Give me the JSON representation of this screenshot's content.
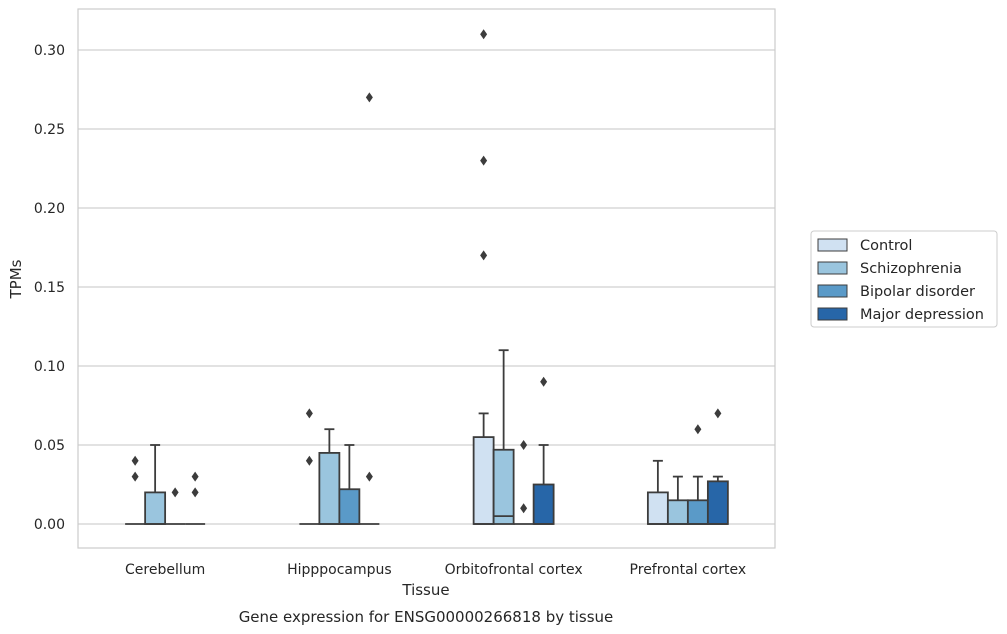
{
  "chart_data": {
    "type": "box",
    "title": "",
    "caption": "Gene expression for ENSG00000266818 by tissue",
    "xlabel": "Tissue",
    "ylabel": "TPMs",
    "ylim": [
      -0.015,
      0.326
    ],
    "yticks": [
      "0.00",
      "0.05",
      "0.10",
      "0.15",
      "0.20",
      "0.25",
      "0.30"
    ],
    "grid": "horizontal",
    "legend_position": "right",
    "categories": [
      "Cerebellum",
      "Hipppocampus",
      "Orbitofrontal cortex",
      "Prefrontal cortex"
    ],
    "series": [
      {
        "name": "Control",
        "color": "#d0e1f2",
        "boxes": [
          {
            "q1": 0.0,
            "median": 0.0,
            "q3": 0.0,
            "whisker_low": 0.0,
            "whisker_high": 0.0,
            "outliers": [
              0.03,
              0.04
            ]
          },
          {
            "q1": 0.0,
            "median": 0.0,
            "q3": 0.0,
            "whisker_low": 0.0,
            "whisker_high": 0.0,
            "outliers": [
              0.04,
              0.07
            ]
          },
          {
            "q1": 0.0,
            "median": 0.0,
            "q3": 0.055,
            "whisker_low": 0.0,
            "whisker_high": 0.07,
            "outliers": [
              0.17,
              0.23,
              0.31
            ]
          },
          {
            "q1": 0.0,
            "median": 0.0,
            "q3": 0.02,
            "whisker_low": 0.0,
            "whisker_high": 0.04,
            "outliers": []
          }
        ]
      },
      {
        "name": "Schizophrenia",
        "color": "#9ac5de",
        "boxes": [
          {
            "q1": 0.0,
            "median": 0.0,
            "q3": 0.02,
            "whisker_low": 0.0,
            "whisker_high": 0.05,
            "outliers": []
          },
          {
            "q1": 0.0,
            "median": 0.0,
            "q3": 0.045,
            "whisker_low": 0.0,
            "whisker_high": 0.06,
            "outliers": []
          },
          {
            "q1": 0.0,
            "median": 0.005,
            "q3": 0.047,
            "whisker_low": 0.0,
            "whisker_high": 0.11,
            "outliers": []
          },
          {
            "q1": 0.0,
            "median": 0.0,
            "q3": 0.015,
            "whisker_low": 0.0,
            "whisker_high": 0.03,
            "outliers": []
          }
        ]
      },
      {
        "name": "Bipolar disorder",
        "color": "#5a9ac8",
        "boxes": [
          {
            "q1": 0.0,
            "median": 0.0,
            "q3": 0.0,
            "whisker_low": 0.0,
            "whisker_high": 0.0,
            "outliers": [
              0.02
            ]
          },
          {
            "q1": 0.0,
            "median": 0.0,
            "q3": 0.022,
            "whisker_low": 0.0,
            "whisker_high": 0.05,
            "outliers": []
          },
          {
            "q1": 0.0,
            "median": 0.0,
            "q3": 0.0,
            "whisker_low": 0.0,
            "whisker_high": 0.0,
            "outliers": [
              0.01,
              0.05
            ]
          },
          {
            "q1": 0.0,
            "median": 0.0,
            "q3": 0.015,
            "whisker_low": 0.0,
            "whisker_high": 0.03,
            "outliers": [
              0.06
            ]
          }
        ]
      },
      {
        "name": "Major depression",
        "color": "#2766a8",
        "boxes": [
          {
            "q1": 0.0,
            "median": 0.0,
            "q3": 0.0,
            "whisker_low": 0.0,
            "whisker_high": 0.0,
            "outliers": [
              0.02,
              0.03
            ]
          },
          {
            "q1": 0.0,
            "median": 0.0,
            "q3": 0.0,
            "whisker_low": 0.0,
            "whisker_high": 0.0,
            "outliers": [
              0.03,
              0.27
            ]
          },
          {
            "q1": 0.0,
            "median": 0.0,
            "q3": 0.025,
            "whisker_low": 0.0,
            "whisker_high": 0.05,
            "outliers": [
              0.09
            ]
          },
          {
            "q1": 0.0,
            "median": 0.0,
            "q3": 0.027,
            "whisker_low": 0.0,
            "whisker_high": 0.03,
            "outliers": [
              0.07
            ]
          }
        ]
      }
    ]
  }
}
